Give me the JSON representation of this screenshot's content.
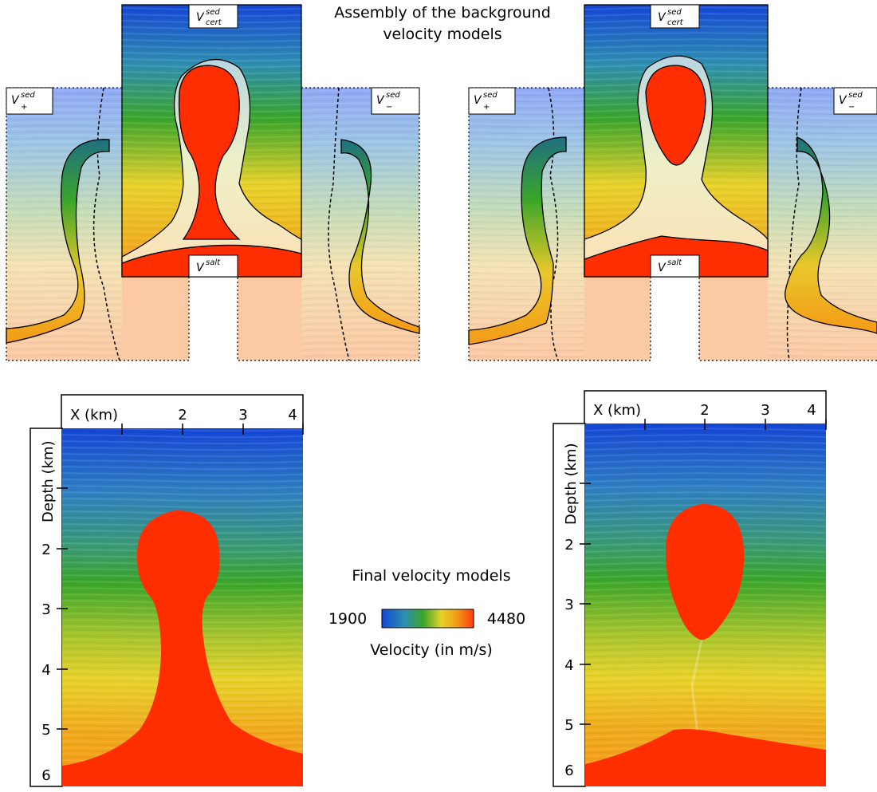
{
  "top": {
    "title_line1": "Assembly of the background",
    "title_line2": "velocity models",
    "labels": {
      "v_cert": {
        "base": "V",
        "sup": "sed",
        "sub": "cert"
      },
      "v_plus": {
        "base": "V",
        "sup": "sed",
        "sub": "+"
      },
      "v_minus": {
        "base": "V",
        "sup": "sed",
        "sub": "−"
      },
      "v_salt": {
        "base": "V",
        "sup": "salt"
      }
    }
  },
  "bottom": {
    "legend_title": "Final velocity models",
    "colorbar_min": "1900",
    "colorbar_max": "4480",
    "colorbar_label": "Velocity (in m/s)",
    "colors": {
      "c0": "#1447d6",
      "c1": "#2f8fb0",
      "c2": "#3aa52a",
      "c3": "#e8d22a",
      "c4": "#f29a16",
      "c5": "#ff3a08"
    },
    "salt_color": "#ff2e00",
    "x_axis": {
      "label": "X (km)",
      "ticks": [
        "2",
        "3",
        "4"
      ]
    },
    "y_axis": {
      "label": "Depth (km)",
      "ticks": [
        "2",
        "3",
        "4",
        "5",
        "6"
      ]
    }
  }
}
